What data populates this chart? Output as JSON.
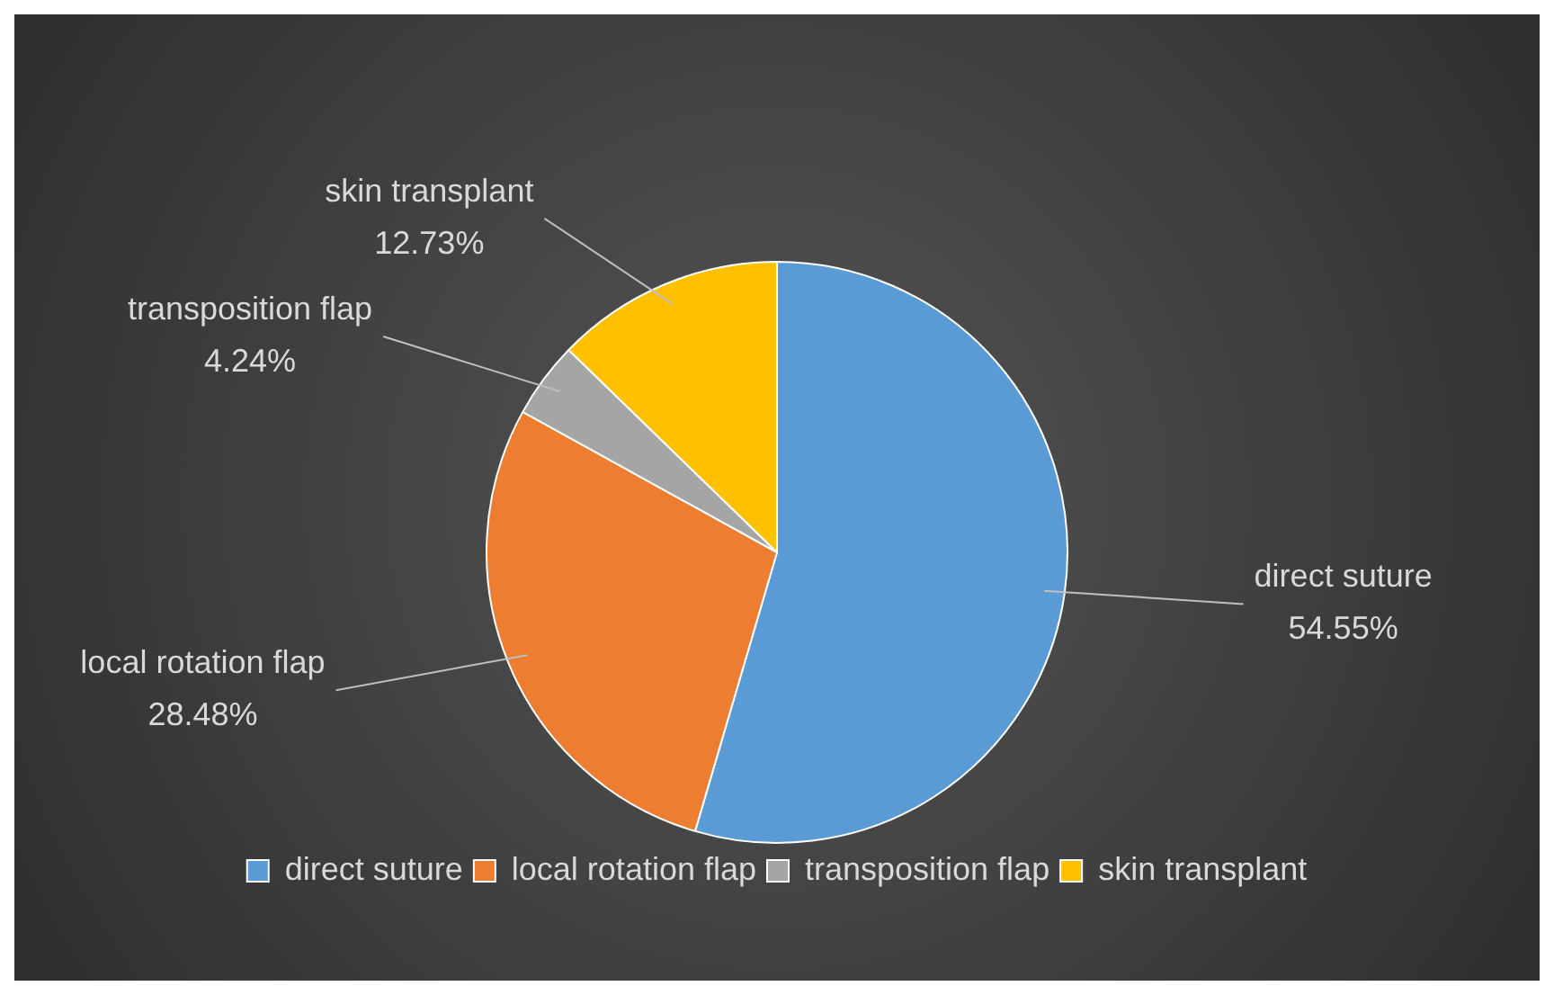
{
  "chart_data": {
    "type": "pie",
    "categories": [
      "direct suture",
      "local rotation flap",
      "transposition flap",
      "skin transplant"
    ],
    "values": [
      54.55,
      28.48,
      4.24,
      12.73
    ],
    "colors": [
      "#5b9bd5",
      "#ed7d31",
      "#a5a5a5",
      "#ffc000"
    ],
    "value_labels": [
      "54.55%",
      "28.48%",
      "4.24%",
      "12.73%"
    ],
    "legend": "bottom"
  }
}
